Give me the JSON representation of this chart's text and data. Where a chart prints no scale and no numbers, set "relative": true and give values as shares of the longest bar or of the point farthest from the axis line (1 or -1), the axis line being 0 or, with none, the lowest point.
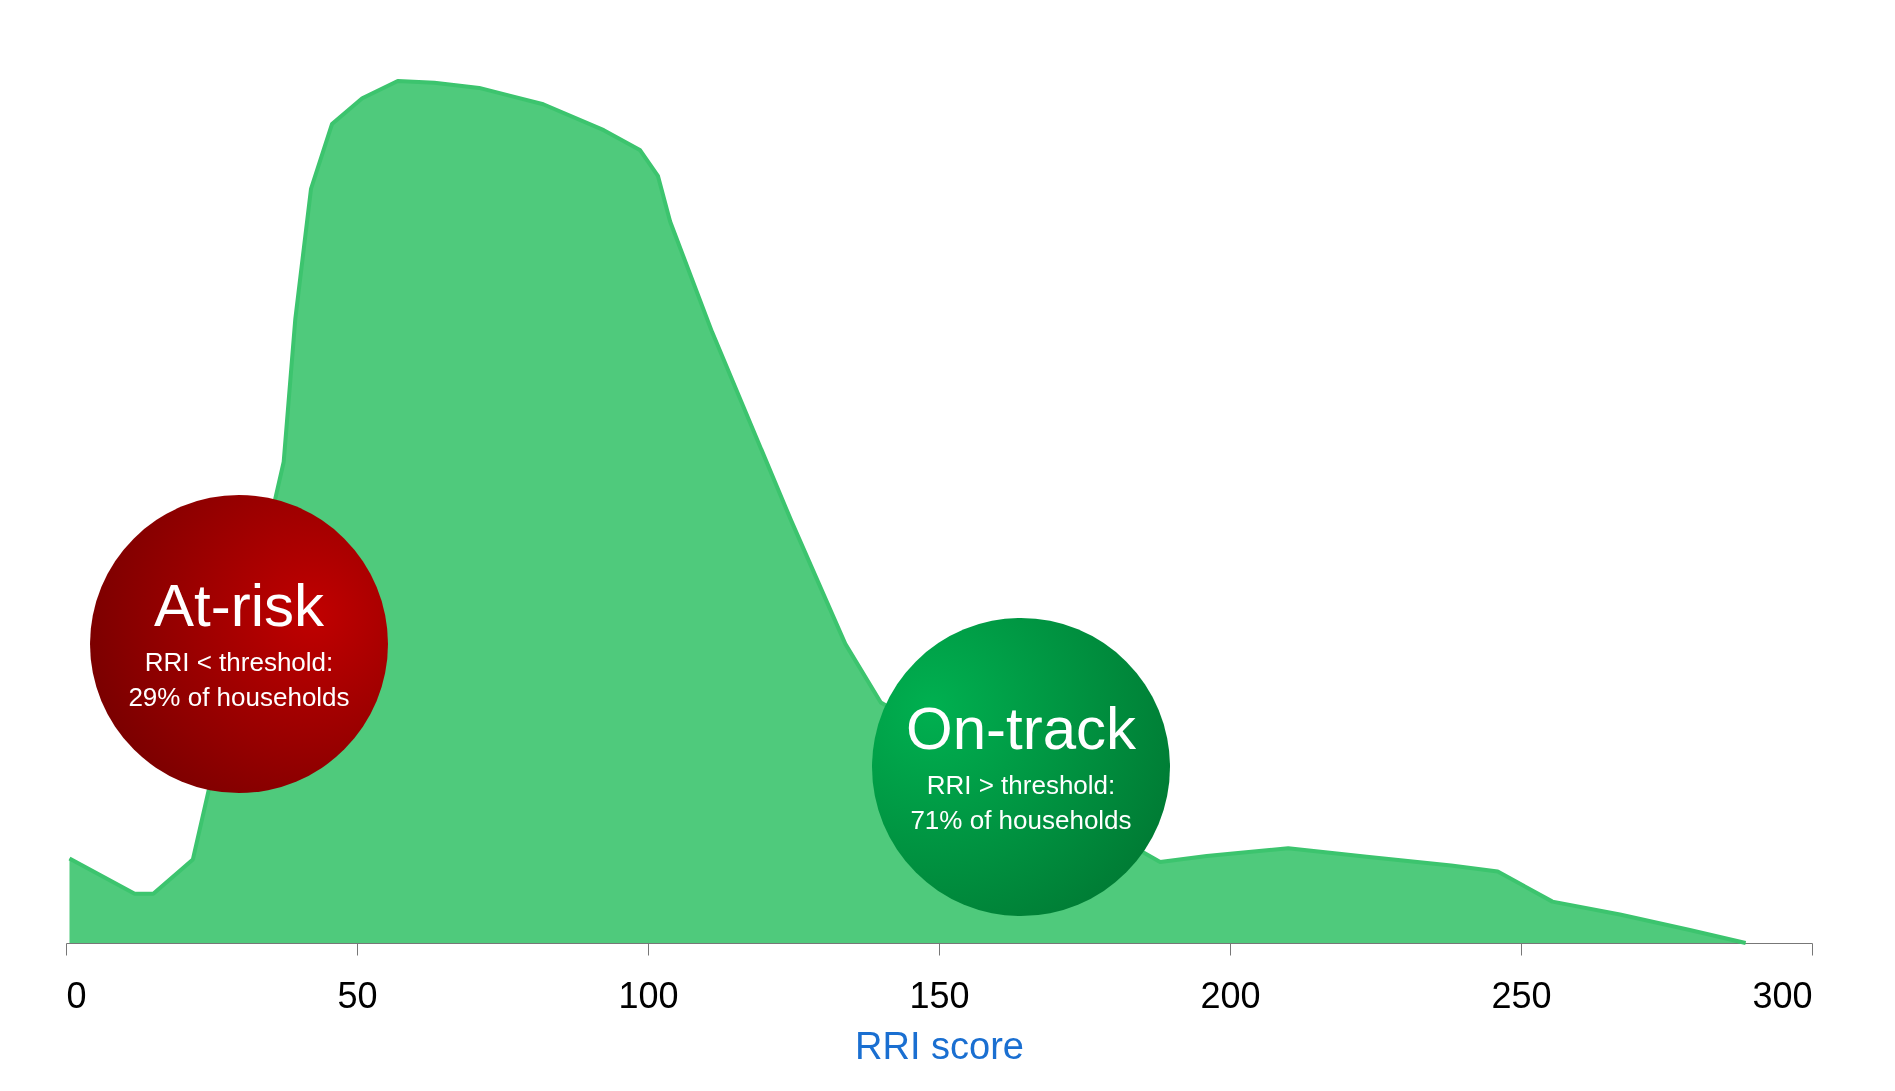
{
  "chart_data": {
    "type": "area",
    "xlabel": "RRI score",
    "relative": true,
    "xlim": [
      0,
      300
    ],
    "xticks": [
      0,
      50,
      100,
      150,
      200,
      250,
      300
    ],
    "grid": false,
    "legend": false,
    "annotations": [
      "At-risk",
      "RRI < threshold: 29% of households",
      "On-track",
      "RRI > threshold: 71% of households"
    ],
    "series": [
      {
        "color": "#3cc46e",
        "x": [
          0.6,
          11.8,
          15,
          21.8,
          37.4,
          39.4,
          42.1,
          45.7,
          50.9,
          57,
          63.3,
          71,
          82,
          92.4,
          98.6,
          101.7,
          103.8,
          111,
          124.6,
          133.9,
          140,
          188,
          196,
          210,
          223.5,
          238,
          246,
          255.4,
          267,
          279,
          288.6
        ],
        "values": [
          0.098,
          0.057,
          0.057,
          0.097,
          0.558,
          0.724,
          0.875,
          0.95,
          0.98,
          1.0,
          0.998,
          0.992,
          0.973,
          0.943,
          0.92,
          0.89,
          0.837,
          0.709,
          0.49,
          0.347,
          0.279,
          0.094,
          0.101,
          0.11,
          0.1,
          0.09,
          0.083,
          0.048,
          0.033,
          0.015,
          0
        ]
      }
    ]
  }
}
